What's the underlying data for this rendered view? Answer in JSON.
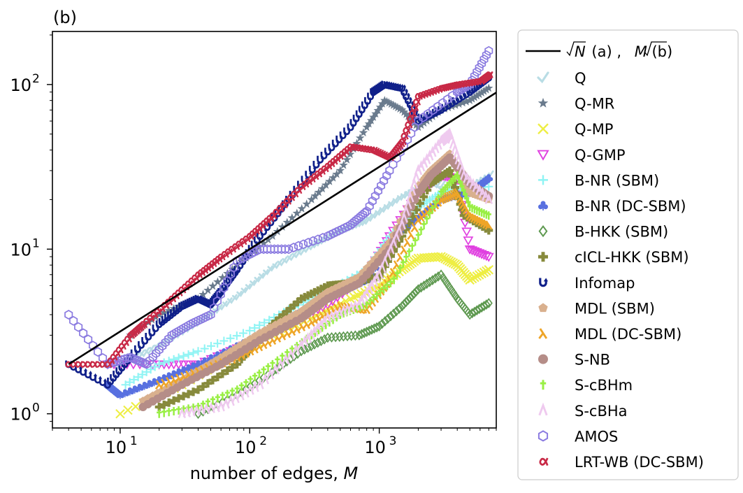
{
  "chart_data": {
    "type": "scatter",
    "panel_label": "(b)",
    "xlabel": "number of edges, ",
    "xlabel_var": "M",
    "ylabel": "",
    "xscale": "log",
    "yscale": "log",
    "xlim": [
      3,
      8000
    ],
    "ylim": [
      0.82,
      210
    ],
    "x_ticks": [
      {
        "value": 10,
        "base": "10",
        "exp": "1"
      },
      {
        "value": 100,
        "base": "10",
        "exp": "2"
      },
      {
        "value": 1000,
        "base": "10",
        "exp": "3"
      }
    ],
    "y_ticks": [
      {
        "value": 1,
        "label": "10",
        "exp": "0"
      },
      {
        "value": 10,
        "label": "10",
        "exp": "1"
      },
      {
        "value": 100,
        "label": "10",
        "exp": "2"
      }
    ],
    "legend_position": "outside-right",
    "reference_line": {
      "label_parts": [
        "N",
        " (a) , ",
        "M",
        " (b)"
      ],
      "color": "#000000",
      "x": [
        4,
        8000
      ],
      "y": [
        2,
        89.4
      ]
    },
    "series": [
      {
        "name": "Q",
        "color": "#b9dde5",
        "marker": "check",
        "x": [
          10,
          20,
          40,
          80,
          150,
          300,
          500,
          800,
          1500,
          2500,
          4000,
          7000
        ],
        "y": [
          2.0,
          2.6,
          3.6,
          5.2,
          7.8,
          10.5,
          13.0,
          15.0,
          21.0,
          26.0,
          22.0,
          28.0
        ]
      },
      {
        "name": "Q-MR",
        "color": "#6a7b8d",
        "marker": "star",
        "x": [
          12,
          20,
          40,
          80,
          150,
          300,
          500,
          800,
          1100,
          1500,
          2000,
          3000,
          5000,
          7000
        ],
        "y": [
          3.0,
          4.0,
          5.0,
          8.0,
          12.0,
          20.0,
          30.0,
          55.0,
          80.0,
          70.0,
          55.0,
          70.0,
          80.0,
          95.0
        ]
      },
      {
        "name": "Q-MP",
        "color": "#eeee44",
        "marker": "x",
        "x": [
          10,
          30,
          100,
          300,
          600,
          1000,
          1500,
          2000,
          3000,
          4000,
          5000,
          7000
        ],
        "y": [
          1.0,
          1.5,
          2.6,
          3.8,
          5.0,
          6.0,
          7.5,
          8.8,
          9.0,
          8.0,
          6.5,
          7.5
        ]
      },
      {
        "name": "Q-GMP",
        "color": "#e040e0",
        "marker": "triangle-down",
        "x": [
          8,
          20,
          40,
          100,
          200,
          400,
          800,
          1200,
          2000,
          3000,
          4000,
          5000,
          7000
        ],
        "y": [
          2.0,
          2.0,
          2.0,
          2.7,
          3.6,
          4.6,
          7.0,
          12.0,
          22.0,
          28.0,
          27.0,
          10.0,
          9.0
        ]
      },
      {
        "name": "B-NR (SBM)",
        "color": "#8ff4f4",
        "marker": "plus",
        "x": [
          11,
          20,
          40,
          100,
          200,
          400,
          800,
          1200,
          2000,
          3000,
          4000,
          7000
        ],
        "y": [
          1.5,
          2.0,
          2.4,
          3.2,
          4.3,
          5.6,
          7.5,
          12.0,
          18.0,
          22.0,
          23.0,
          24.0
        ]
      },
      {
        "name": "B-NR (DC-SBM)",
        "color": "#5870e0",
        "marker": "club",
        "x": [
          8,
          10,
          20,
          40,
          100,
          200,
          400,
          800,
          1500,
          3000,
          5000,
          7000
        ],
        "y": [
          1.5,
          1.3,
          1.6,
          2.0,
          2.8,
          3.8,
          5.0,
          6.5,
          13.0,
          20.0,
          22.0,
          27.0
        ]
      },
      {
        "name": "B-HKK (SBM)",
        "color": "#5e9950",
        "marker": "diamond-open",
        "x": [
          40,
          80,
          150,
          250,
          400,
          700,
          1000,
          1500,
          2000,
          3000,
          4000,
          5000,
          7000
        ],
        "y": [
          1.0,
          1.3,
          1.8,
          2.4,
          2.9,
          3.0,
          3.4,
          4.5,
          5.7,
          7.0,
          5.0,
          4.0,
          4.7
        ]
      },
      {
        "name": "cICL-HKK (SBM)",
        "color": "#878a3c",
        "marker": "plus-bold",
        "x": [
          20,
          40,
          80,
          150,
          250,
          400,
          600,
          1000,
          1500,
          2500,
          3500,
          4500,
          7000
        ],
        "y": [
          1.1,
          1.4,
          2.0,
          3.5,
          5.0,
          6.0,
          6.2,
          6.8,
          12.0,
          25.0,
          30.0,
          16.0,
          13.0
        ]
      },
      {
        "name": "Infomap",
        "color": "#10208a",
        "marker": "u-turn",
        "x": [
          4,
          8,
          12,
          20,
          30,
          40,
          50,
          60,
          80,
          120,
          200,
          350,
          600,
          900,
          1100,
          1500,
          2000,
          3000,
          5000,
          7000
        ],
        "y": [
          2.0,
          1.5,
          2.2,
          3.5,
          4.5,
          5.0,
          4.6,
          5.5,
          7.5,
          12.0,
          20.0,
          35.0,
          55.0,
          90.0,
          100.0,
          95.0,
          60.0,
          70.0,
          90.0,
          110.0
        ]
      },
      {
        "name": "MDL (SBM)",
        "color": "#d9b08e",
        "marker": "pentagon",
        "x": [
          15,
          30,
          60,
          120,
          250,
          400,
          700,
          1200,
          2000,
          2500,
          3500,
          5000,
          7000
        ],
        "y": [
          1.2,
          1.6,
          2.2,
          3.1,
          4.2,
          5.5,
          6.8,
          11.0,
          24.0,
          30.0,
          38.0,
          22.0,
          20.0
        ]
      },
      {
        "name": "MDL (DC-SBM)",
        "color": "#eea528",
        "marker": "lambda",
        "x": [
          20,
          40,
          80,
          150,
          300,
          500,
          800,
          1200,
          2000,
          3000,
          4000,
          5000,
          7000
        ],
        "y": [
          1.5,
          1.8,
          2.2,
          2.8,
          3.6,
          4.5,
          4.3,
          6.5,
          15.0,
          20.0,
          22.0,
          16.0,
          14.0
        ]
      },
      {
        "name": "S-NB",
        "color": "#b58d88",
        "marker": "circle",
        "x": [
          15,
          30,
          60,
          120,
          250,
          400,
          700,
          1200,
          2000,
          2500,
          3500,
          5000,
          7000
        ],
        "y": [
          1.1,
          1.5,
          2.0,
          2.8,
          3.8,
          5.0,
          6.2,
          10.0,
          22.0,
          28.0,
          36.0,
          25.0,
          21.0
        ]
      },
      {
        "name": "S-cBHm",
        "color": "#99ef44",
        "marker": "dagger",
        "x": [
          20,
          40,
          80,
          150,
          300,
          500,
          800,
          1300,
          2000,
          3000,
          4000,
          5000,
          7000
        ],
        "y": [
          1.0,
          1.1,
          1.4,
          2.0,
          3.0,
          4.0,
          4.6,
          6.5,
          12.0,
          22.0,
          28.0,
          18.0,
          16.0
        ]
      },
      {
        "name": "S-cBHa",
        "color": "#efcaef",
        "marker": "caret",
        "x": [
          30,
          60,
          120,
          250,
          400,
          700,
          1000,
          1500,
          2000,
          3000,
          3500,
          4500,
          7000
        ],
        "y": [
          1.0,
          1.1,
          1.5,
          2.6,
          3.8,
          4.6,
          7.0,
          14.0,
          30.0,
          45.0,
          50.0,
          28.0,
          20.0
        ]
      },
      {
        "name": "AMOS",
        "color": "#8a7ae0",
        "marker": "hexagon-open",
        "x": [
          4,
          8,
          12,
          16,
          25,
          35,
          50,
          80,
          120,
          200,
          400,
          600,
          800,
          1200,
          2000,
          4000,
          5000,
          7000
        ],
        "y": [
          4.0,
          2.0,
          2.2,
          2.0,
          3.0,
          3.5,
          4.0,
          8.5,
          10.0,
          10.0,
          12.0,
          14.0,
          17.0,
          30.0,
          60.0,
          90.0,
          100.0,
          160.0
        ]
      },
      {
        "name": "LRT-WB (DC-SBM)",
        "color": "#c82946",
        "marker": "alpha",
        "x": [
          4,
          8,
          12,
          15,
          25,
          40,
          60,
          100,
          150,
          250,
          400,
          600,
          900,
          1200,
          1500,
          2000,
          3000,
          4000,
          6000,
          7000
        ],
        "y": [
          2.0,
          2.0,
          3.0,
          3.5,
          5.0,
          7.0,
          9.0,
          12.0,
          16.0,
          24.0,
          32.0,
          42.0,
          40.0,
          36.0,
          45.0,
          85.0,
          95.0,
          100.0,
          105.0,
          115.0
        ]
      }
    ]
  }
}
